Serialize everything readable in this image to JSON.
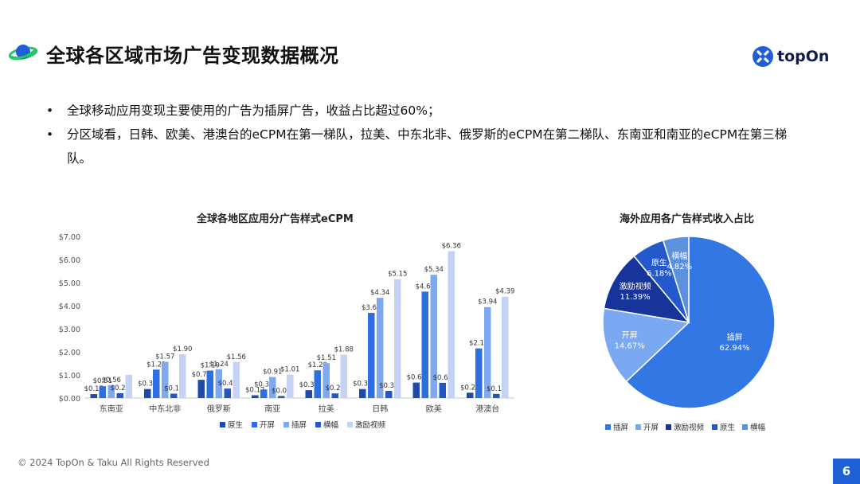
{
  "title": "全球各区域市场广告变现数据概况",
  "brand": {
    "name": "topOn",
    "color": "#1f5fd6"
  },
  "bullets": [
    "全球移动应用变现主要使用的广告为插屏广告，收益占比超过60%；",
    "分区域看，日韩、欧美、港澳台的eCPM在第一梯队，拉美、中东北非、俄罗斯的eCPM在第二梯队、东南亚和南亚的eCPM在第三梯队。"
  ],
  "bullet_symbol": "•",
  "footer": "© 2024 TopOn & Taku All Rights Reserved",
  "page_number": "6",
  "icons": {
    "header": "planet-icon",
    "logo": "topon-logo-icon"
  },
  "chart_data": [
    {
      "type": "bar",
      "title": "全球各地区应用分广告样式eCPM",
      "categories": [
        "东南亚",
        "中东北非",
        "俄罗斯",
        "南亚",
        "拉美",
        "日韩",
        "欧美",
        "港澳台"
      ],
      "series": [
        {
          "name": "原生",
          "color": "#1f4aa8",
          "values": [
            0.17,
            0.39,
            0.79,
            0.12,
            0.34,
            0.39,
            0.67,
            0.23
          ],
          "labels": [
            "$0.17",
            "$0.39",
            "$0.79",
            "$0.12",
            "$0.34",
            "$0.39",
            "$0.67",
            "$0.23"
          ]
        },
        {
          "name": "开屏",
          "color": "#2e6fe0",
          "values": [
            0.51,
            1.23,
            1.19,
            0.37,
            1.2,
            3.69,
            4.61,
            2.15
          ],
          "labels": [
            "$0.51",
            "$1.23",
            "$1.19",
            "$0.37",
            "$1.20",
            "$3.69",
            "$4.61",
            "$2.15"
          ]
        },
        {
          "name": "插屏",
          "color": "#7fa8ee",
          "values": [
            0.56,
            1.57,
            1.24,
            0.91,
            1.51,
            4.34,
            5.34,
            3.94
          ],
          "labels": [
            "$0.56",
            "$1.57",
            "$1.24",
            "$0.91",
            "$1.51",
            "$4.34",
            "$5.34",
            "$3.94"
          ]
        },
        {
          "name": "横幅",
          "color": "#2358c4",
          "values": [
            0.21,
            0.19,
            0.41,
            0.09,
            0.2,
            0.31,
            0.66,
            0.18
          ],
          "labels": [
            "$0.21",
            "$0.19",
            "$0.41",
            "$0.09",
            "$0.20",
            "$0.31",
            "$0.66",
            "$0.18"
          ]
        },
        {
          "name": "激励视频",
          "color": "#c4d3f5",
          "values": [
            1.0,
            1.9,
            1.56,
            1.01,
            1.88,
            5.15,
            6.36,
            4.39
          ],
          "labels": [
            "",
            "$1.90",
            "$1.56",
            "$1.01",
            "$1.88",
            "$5.15",
            "$6.36",
            "$4.39"
          ]
        }
      ],
      "y_ticks": [
        "$0.00",
        "$1.00",
        "$2.00",
        "$3.00",
        "$4.00",
        "$5.00",
        "$6.00",
        "$7.00"
      ],
      "ylim": [
        0,
        7
      ],
      "grid": false,
      "legend": "bottom"
    },
    {
      "type": "pie",
      "title": "海外应用各广告样式收入占比",
      "slices": [
        {
          "name": "插屏",
          "value": 62.94,
          "label": "62.94%",
          "color": "#3277e3"
        },
        {
          "name": "开屏",
          "value": 14.67,
          "label": "14.67%",
          "color": "#7aa8f2"
        },
        {
          "name": "激励视频",
          "value": 11.39,
          "label": "11.39%",
          "color": "#17349a"
        },
        {
          "name": "原生",
          "value": 6.18,
          "label": "6.18%",
          "color": "#2459cc"
        },
        {
          "name": "横幅",
          "value": 4.82,
          "label": "4.82%",
          "color": "#5b91dd"
        }
      ],
      "legend": "bottom"
    }
  ]
}
